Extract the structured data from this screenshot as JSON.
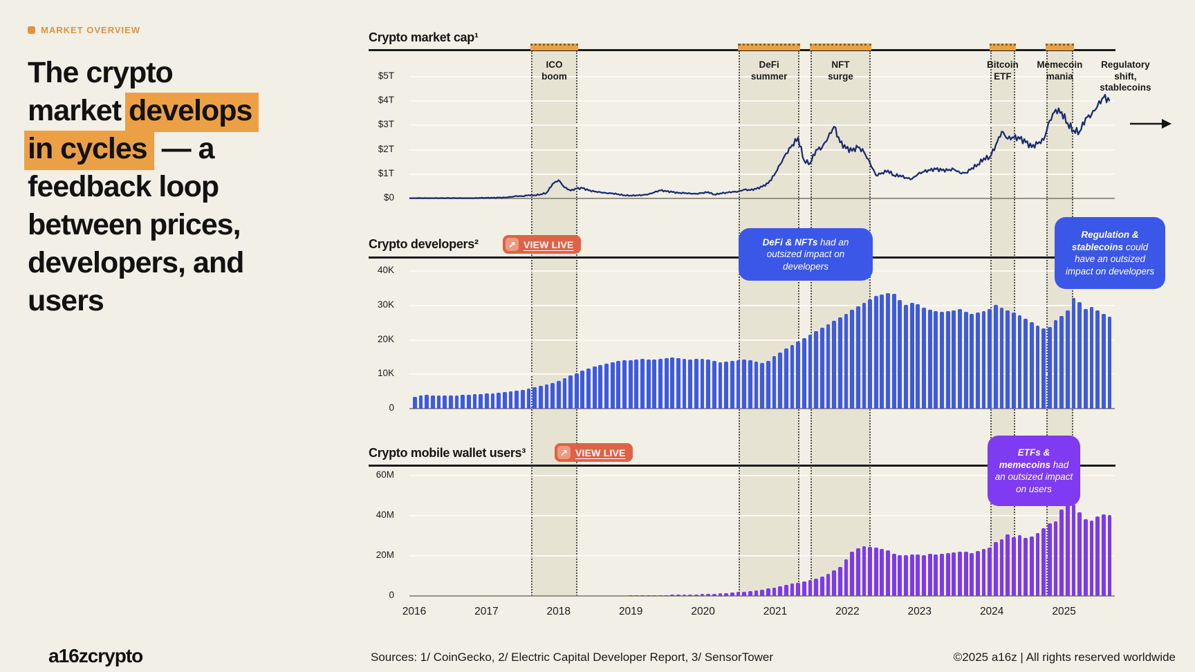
{
  "eyebrow": {
    "label": "MARKET OVERVIEW",
    "color": "#E2923B"
  },
  "heading": {
    "line1": "The crypto",
    "line2_pre": "market ",
    "line2_hl": "develops",
    "line3_hl": "in cycles",
    "line3_post": " — a",
    "line4": "feedback loop",
    "line5": "between prices,",
    "line6": "developers, and",
    "line7": "users"
  },
  "charts": [
    {
      "id": "market-cap",
      "title": "Crypto market cap¹",
      "ticks": [
        {
          "v": 5,
          "label": "$5T"
        },
        {
          "v": 4,
          "label": "$4T"
        },
        {
          "v": 3,
          "label": "$3T"
        },
        {
          "v": 2,
          "label": "$2T"
        },
        {
          "v": 1,
          "label": "$1T"
        },
        {
          "v": 0,
          "label": "$0"
        }
      ]
    },
    {
      "id": "developers",
      "title": "Crypto developers²",
      "view_live": "VIEW LIVE",
      "ticks": [
        {
          "v": 40,
          "label": "40K"
        },
        {
          "v": 30,
          "label": "30K"
        },
        {
          "v": 20,
          "label": "20K"
        },
        {
          "v": 10,
          "label": "10K"
        },
        {
          "v": 0,
          "label": "0"
        }
      ]
    },
    {
      "id": "wallet-users",
      "title": "Crypto mobile wallet users³",
      "view_live": "VIEW LIVE",
      "ticks": [
        {
          "v": 60,
          "label": "60M"
        },
        {
          "v": 40,
          "label": "40M"
        },
        {
          "v": 20,
          "label": "20M"
        },
        {
          "v": 0,
          "label": "0"
        }
      ]
    }
  ],
  "x_axis": [
    "2016",
    "2017",
    "2018",
    "2019",
    "2020",
    "2021",
    "2022",
    "2023",
    "2024",
    "2025"
  ],
  "events": [
    {
      "id": "ico-boom",
      "lines": [
        "ICO",
        "boom"
      ],
      "band": [
        2017.62,
        2018.26
      ]
    },
    {
      "id": "defi-summer",
      "lines": [
        "DeFi",
        "summer"
      ],
      "band": [
        2020.49,
        2021.34
      ]
    },
    {
      "id": "nft-surge",
      "lines": [
        "NFT",
        "surge"
      ],
      "band": [
        2021.49,
        2022.32
      ]
    },
    {
      "id": "bitcoin-etf",
      "lines": [
        "Bitcoin",
        "ETF"
      ],
      "band": [
        2023.98,
        2024.32
      ]
    },
    {
      "id": "memecoin-mania",
      "lines": [
        "Memecoin",
        "mania"
      ],
      "band": [
        2024.75,
        2025.13
      ]
    },
    {
      "id": "regulatory-shift",
      "lines": [
        "Regulatory",
        "shift,",
        "stablecoins"
      ],
      "label_year": 2025.85,
      "arrow": true
    }
  ],
  "callouts": [
    {
      "id": "defi-nfts-impact",
      "bold": "DeFi & NFTs",
      "rest": " had an outsized impact on developers"
    },
    {
      "id": "regulation-stablecoins-impact",
      "bold": "Regulation & stablecoins",
      "rest": " could have an outsized impact on developers"
    },
    {
      "id": "etfs-memecoins-impact",
      "bold": "ETFs & memecoins",
      "rest": " had an outsized impact on users"
    }
  ],
  "footer": {
    "logo": "a16zcrypto",
    "sources": "Sources: 1/ CoinGecko, 2/ Electric Capital Developer Report, 3/ SensorTower",
    "copyright": "©2025 a16z | All rights reserved worldwide"
  },
  "chart_data": [
    {
      "type": "line",
      "title": "Crypto market cap",
      "unit": "USD trillions",
      "ylabel": "Market cap ($T)",
      "ylim": [
        0,
        6
      ],
      "x_start": "2016-01",
      "x_end": "2025-09",
      "frequency": "monthly",
      "grid": true,
      "values": [
        0.01,
        0.01,
        0.01,
        0.01,
        0.01,
        0.01,
        0.01,
        0.01,
        0.01,
        0.01,
        0.01,
        0.02,
        0.02,
        0.02,
        0.03,
        0.03,
        0.06,
        0.1,
        0.09,
        0.14,
        0.13,
        0.17,
        0.23,
        0.6,
        0.75,
        0.45,
        0.32,
        0.4,
        0.42,
        0.33,
        0.28,
        0.25,
        0.22,
        0.21,
        0.17,
        0.13,
        0.12,
        0.13,
        0.14,
        0.17,
        0.25,
        0.33,
        0.29,
        0.26,
        0.22,
        0.22,
        0.2,
        0.19,
        0.23,
        0.26,
        0.16,
        0.21,
        0.24,
        0.27,
        0.28,
        0.36,
        0.34,
        0.39,
        0.48,
        0.62,
        0.95,
        1.4,
        1.85,
        2.2,
        2.5,
        1.55,
        1.45,
        2.0,
        2.1,
        2.5,
        2.95,
        2.3,
        2.05,
        1.95,
        2.1,
        1.9,
        1.45,
        0.95,
        1.05,
        1.15,
        0.95,
        0.95,
        0.85,
        0.8,
        1.0,
        1.1,
        1.15,
        1.2,
        1.15,
        1.15,
        1.2,
        1.05,
        1.05,
        1.25,
        1.4,
        1.65,
        1.7,
        2.2,
        2.75,
        2.45,
        2.5,
        2.45,
        2.3,
        2.1,
        2.25,
        2.4,
        3.2,
        3.65,
        3.55,
        3.1,
        2.8,
        2.75,
        3.3,
        3.45,
        3.8,
        4.15,
        4.0
      ]
    },
    {
      "type": "bar",
      "title": "Crypto developers",
      "unit": "thousands of developers",
      "ylabel": "Developers",
      "ylim": [
        0,
        44
      ],
      "x_start": "2016-01",
      "x_end": "2025-09",
      "frequency": "monthly",
      "grid": true,
      "values": [
        3.4,
        3.9,
        4.0,
        3.9,
        3.8,
        3.9,
        3.8,
        3.9,
        4.0,
        4.1,
        4.2,
        4.3,
        4.4,
        4.5,
        4.6,
        4.8,
        5.0,
        5.2,
        5.5,
        5.9,
        6.3,
        6.7,
        7.0,
        7.4,
        8.0,
        8.8,
        9.6,
        10.3,
        11.0,
        11.6,
        12.2,
        12.7,
        13.1,
        13.5,
        13.8,
        14.0,
        14.1,
        14.3,
        14.4,
        14.3,
        14.2,
        14.4,
        14.6,
        14.8,
        14.6,
        14.4,
        14.3,
        14.5,
        14.4,
        14.2,
        13.8,
        13.5,
        13.7,
        13.9,
        14.1,
        14.3,
        14.0,
        13.6,
        13.3,
        13.8,
        15.3,
        16.3,
        17.4,
        18.4,
        19.5,
        20.5,
        21.6,
        22.6,
        23.6,
        24.6,
        25.6,
        26.6,
        27.6,
        28.7,
        29.7,
        30.8,
        31.8,
        32.7,
        33.2,
        33.5,
        33.4,
        31.6,
        30.2,
        30.8,
        30.4,
        29.4,
        28.8,
        28.4,
        28.1,
        28.3,
        28.6,
        28.9,
        28.2,
        27.6,
        28.0,
        28.4,
        29.0,
        30.2,
        29.4,
        28.6,
        28.0,
        27.2,
        26.2,
        25.2,
        24.2,
        23.4,
        23.8,
        25.8,
        27.0,
        28.5,
        32.2,
        31.0,
        29.0,
        29.5,
        28.6,
        27.6,
        26.8
      ]
    },
    {
      "type": "bar",
      "title": "Crypto mobile wallet users",
      "unit": "millions of users",
      "ylabel": "Users (M)",
      "ylim": [
        0,
        66
      ],
      "x_start": "2016-01",
      "x_end": "2025-09",
      "frequency": "monthly",
      "grid": true,
      "values": [
        0,
        0,
        0,
        0,
        0,
        0,
        0,
        0,
        0,
        0,
        0,
        0,
        0,
        0,
        0,
        0,
        0,
        0,
        0,
        0,
        0,
        0,
        0,
        0,
        0,
        0,
        0,
        0,
        0,
        0,
        0,
        0,
        0,
        0,
        0,
        0,
        0.2,
        0.25,
        0.3,
        0.35,
        0.4,
        0.45,
        0.5,
        0.55,
        0.6,
        0.65,
        0.7,
        0.8,
        0.9,
        1.0,
        1.1,
        1.25,
        1.4,
        1.6,
        1.9,
        2.2,
        2.5,
        2.8,
        3.1,
        3.7,
        4.3,
        4.9,
        5.5,
        6.1,
        6.7,
        7.3,
        7.8,
        8.7,
        9.7,
        11.0,
        12.8,
        14.6,
        18.4,
        21.9,
        23.8,
        24.9,
        24.4,
        24.0,
        23.5,
        22.9,
        21.1,
        20.5,
        20.3,
        20.7,
        20.8,
        20.4,
        20.9,
        20.6,
        21.0,
        21.3,
        21.6,
        21.9,
        22.1,
        21.4,
        22.3,
        23.6,
        24.2,
        26.8,
        28.3,
        30.6,
        29.4,
        30.2,
        29.0,
        29.6,
        31.5,
        33.8,
        36.2,
        37.4,
        43.2,
        49.8,
        45.6,
        41.8,
        38.2,
        37.6,
        39.8,
        40.8,
        40.4
      ]
    }
  ]
}
